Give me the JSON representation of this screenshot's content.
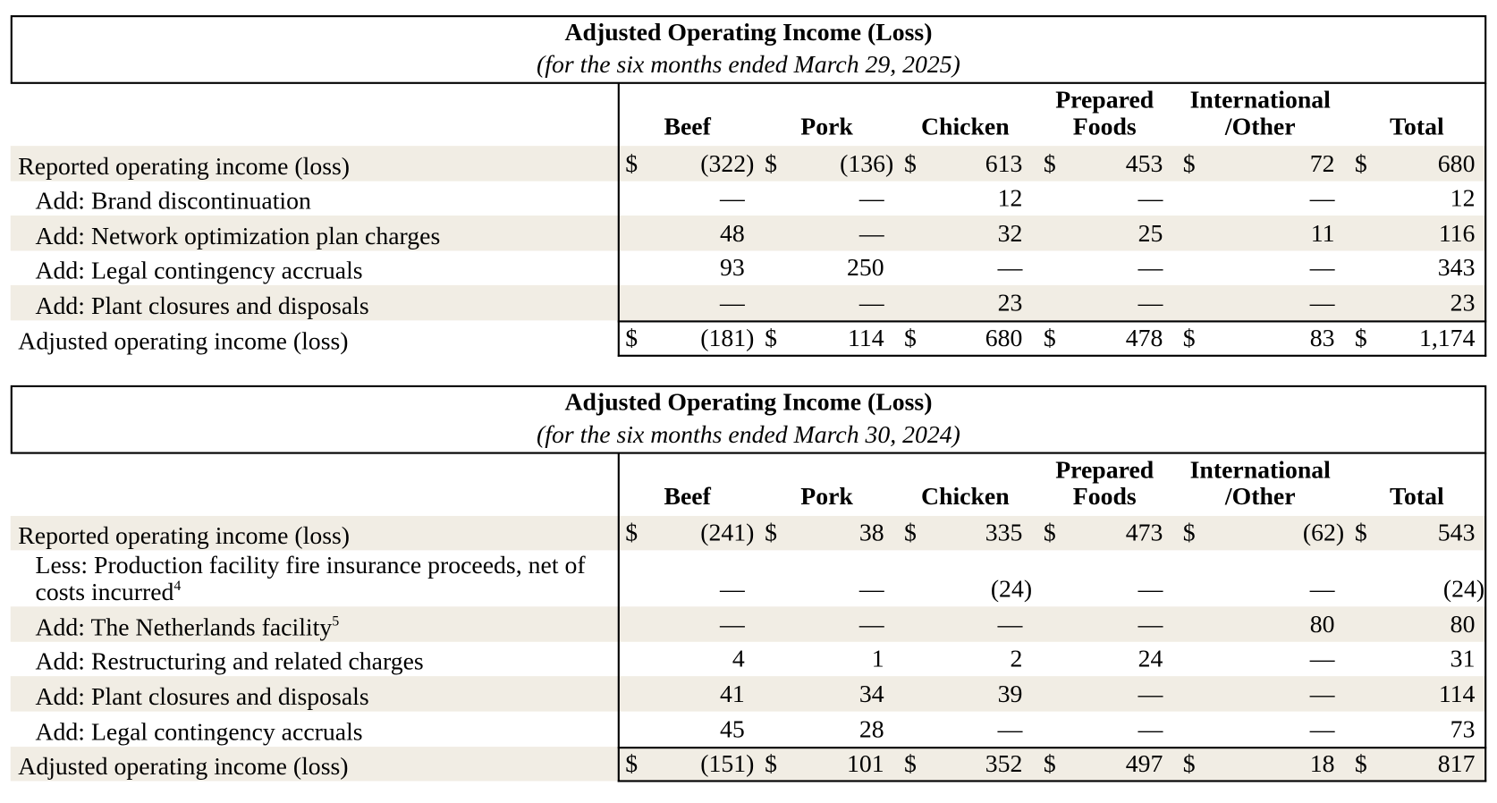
{
  "tables": [
    {
      "title": "Adjusted Operating Income (Loss)",
      "subtitle": "(for the six months ended March 29, 2025)",
      "columns": [
        "Beef",
        "Pork",
        "Chicken",
        "Prepared\nFoods",
        "International\n/Other",
        "Total"
      ],
      "rows": [
        {
          "label": "Reported operating income (loss)",
          "currency": "$",
          "cells": [
            "(322)",
            "(136)",
            "613",
            "453",
            "72",
            "680"
          ]
        },
        {
          "label": "Add: Brand discontinuation",
          "indented": true,
          "cells": [
            "—",
            "—",
            "12",
            "—",
            "—",
            "12"
          ]
        },
        {
          "label": "Add: Network optimization plan charges",
          "indented": true,
          "cells": [
            "48",
            "—",
            "32",
            "25",
            "11",
            "116"
          ]
        },
        {
          "label": "Add: Legal contingency accruals",
          "indented": true,
          "cells": [
            "93",
            "250",
            "—",
            "—",
            "—",
            "343"
          ]
        },
        {
          "label": "Add: Plant closures and disposals",
          "indented": true,
          "cells": [
            "—",
            "—",
            "23",
            "—",
            "—",
            "23"
          ]
        },
        {
          "label": "Adjusted operating income (loss)",
          "currency": "$",
          "total": true,
          "cells": [
            "(181)",
            "114",
            "680",
            "478",
            "83",
            "1,174"
          ]
        }
      ]
    },
    {
      "title": "Adjusted Operating Income (Loss)",
      "subtitle": "(for the six months ended March 30, 2024)",
      "columns": [
        "Beef",
        "Pork",
        "Chicken",
        "Prepared\nFoods",
        "International\n/Other",
        "Total"
      ],
      "rows": [
        {
          "label": "Reported operating income (loss)",
          "currency": "$",
          "cells": [
            "(241)",
            "38",
            "335",
            "473",
            "(62)",
            "543"
          ]
        },
        {
          "label": "Less: Production facility fire insurance proceeds, net of costs incurred",
          "footnote": "4",
          "indented": true,
          "cells": [
            "—",
            "—",
            "(24)",
            "—",
            "—",
            "(24)"
          ]
        },
        {
          "label": "Add: The Netherlands facility",
          "footnote": "5",
          "indented": true,
          "cells": [
            "—",
            "—",
            "—",
            "—",
            "80",
            "80"
          ]
        },
        {
          "label": "Add: Restructuring and related charges",
          "indented": true,
          "cells": [
            "4",
            "1",
            "2",
            "24",
            "—",
            "31"
          ]
        },
        {
          "label": "Add: Plant closures and disposals",
          "indented": true,
          "cells": [
            "41",
            "34",
            "39",
            "—",
            "—",
            "114"
          ]
        },
        {
          "label": "Add: Legal contingency accruals",
          "indented": true,
          "cells": [
            "45",
            "28",
            "—",
            "—",
            "—",
            "73"
          ]
        },
        {
          "label": "Adjusted operating income (loss)",
          "currency": "$",
          "total": true,
          "cells": [
            "(151)",
            "101",
            "352",
            "497",
            "18",
            "817"
          ]
        }
      ]
    }
  ]
}
